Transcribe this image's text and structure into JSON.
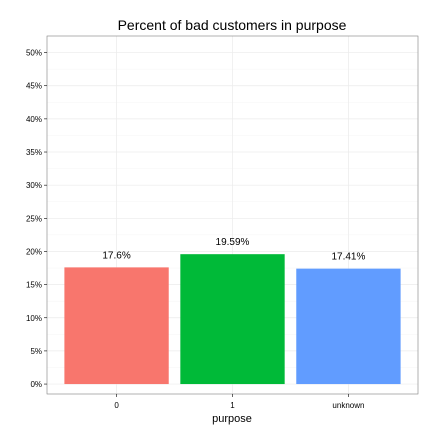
{
  "chart_data": {
    "type": "bar",
    "title": "Percent of bad customers in purpose",
    "xlabel": "purpose",
    "ylabel": "",
    "categories": [
      "0",
      "1",
      "unknown"
    ],
    "values": [
      17.6,
      19.59,
      17.41
    ],
    "value_labels": [
      "17.6%",
      "19.59%",
      "17.41%"
    ],
    "colors": [
      "#F8766D",
      "#00BA38",
      "#619CFF"
    ],
    "ylim": [
      -1.5,
      52.5
    ],
    "yticks": [
      0,
      5,
      10,
      15,
      20,
      25,
      30,
      35,
      40,
      45,
      50
    ],
    "ytick_labels": [
      "0%",
      "5%",
      "10%",
      "15%",
      "20%",
      "25%",
      "30%",
      "35%",
      "40%",
      "45%",
      "50%"
    ],
    "grid": true,
    "legend": "none"
  }
}
